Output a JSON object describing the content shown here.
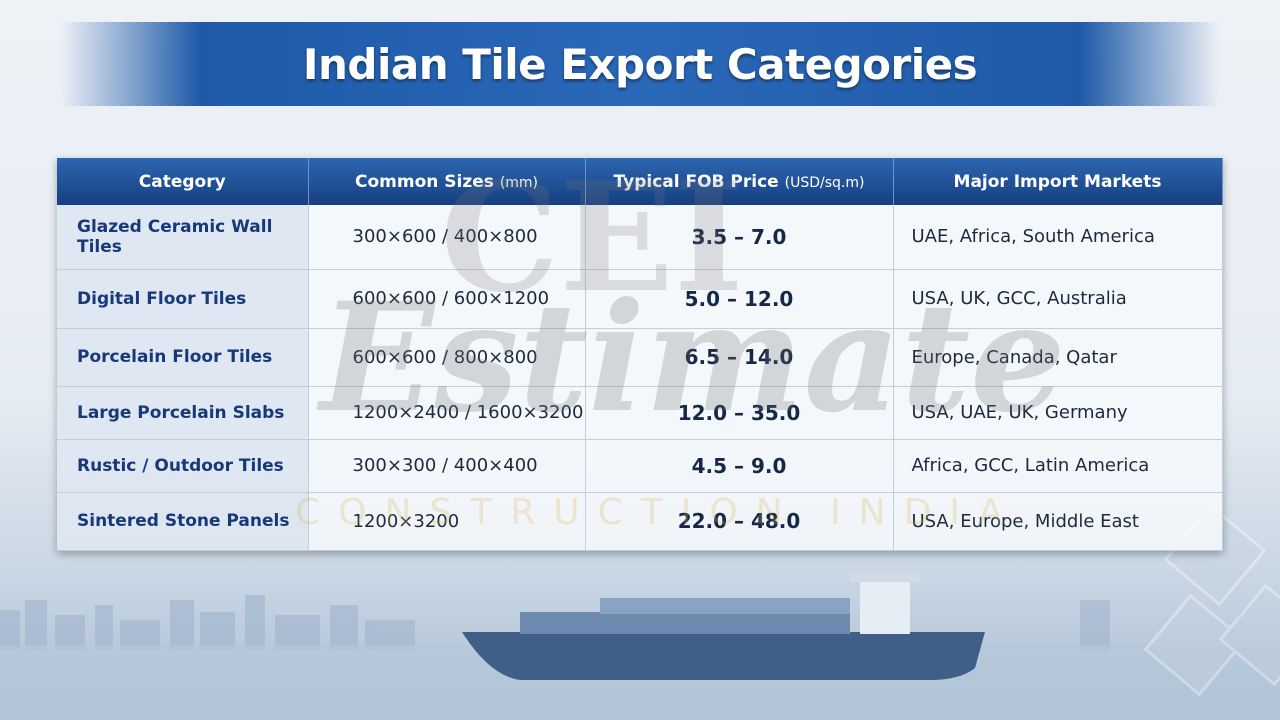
{
  "header": {
    "title": "Indian Tile Export Categories"
  },
  "watermark": {
    "logo": "CEI",
    "word": "Estimate",
    "tagline": "CONSTRUCTION INDIA"
  },
  "table": {
    "columns": [
      {
        "label": "Category"
      },
      {
        "label": "Common Sizes",
        "unit": "(mm)"
      },
      {
        "label": "Typical FOB Price",
        "unit": "(USD/sq.m)"
      },
      {
        "label": "Major Import Markets"
      }
    ],
    "rows": [
      [
        "Glazed Ceramic Wall Tiles",
        "300×600 / 400×800",
        "3.5 – 7.0",
        "UAE, Africa, South America"
      ],
      [
        "Digital Floor Tiles",
        "600×600 / 600×1200",
        "5.0 – 12.0",
        "USA, UK, GCC, Australia"
      ],
      [
        "Porcelain Floor Tiles",
        "600×600 / 800×800",
        "6.5 – 14.0",
        "Europe, Canada, Qatar"
      ],
      [
        "Large Porcelain Slabs",
        "1200×2400 / 1600×3200",
        "12.0 – 35.0",
        "USA, UAE, UK, Germany"
      ],
      [
        "Rustic / Outdoor Tiles",
        "300×300 / 400×400",
        "4.5 – 9.0",
        "Africa, GCC, Latin America"
      ],
      [
        "Sintered Stone Panels",
        "1200×3200",
        "22.0 – 48.0",
        "USA, Europe, Middle East"
      ]
    ]
  }
}
